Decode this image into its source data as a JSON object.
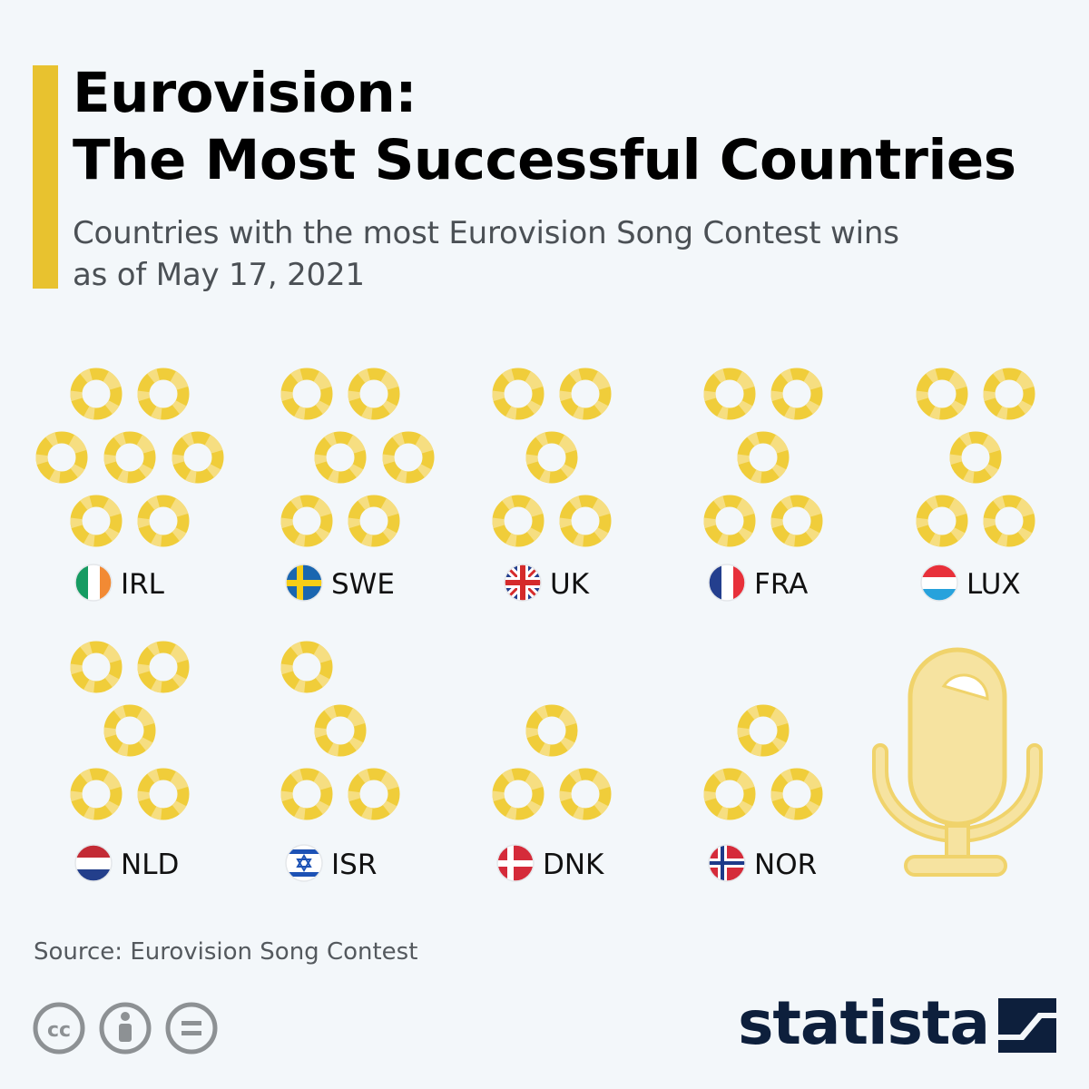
{
  "header": {
    "title_line1": "Eurovision:",
    "title_line2": "The Most Successful Countries",
    "subtitle_line1": "Countries with the most Eurovision Song Contest wins",
    "subtitle_line2": "as of May 17, 2021"
  },
  "footer": {
    "source": "Source: Eurovision Song Contest",
    "brand": "statista"
  },
  "colors": {
    "accent": "#e8c22f",
    "ring": "#f0cd3a",
    "ring_light": "#f6e08a",
    "microphone": "#f6e3a0",
    "text_dark": "#0d1f3c"
  },
  "chart_data": {
    "type": "pictogram",
    "unit": "Eurovision wins",
    "categories": [
      "IRL",
      "SWE",
      "UK",
      "FRA",
      "LUX",
      "NLD",
      "ISR",
      "DNK",
      "NOR"
    ],
    "values": [
      7,
      6,
      5,
      5,
      5,
      5,
      4,
      3,
      3
    ],
    "flags": [
      "ireland-flag-icon",
      "sweden-flag-icon",
      "uk-flag-icon",
      "france-flag-icon",
      "luxembourg-flag-icon",
      "netherlands-flag-icon",
      "israel-flag-icon",
      "denmark-flag-icon",
      "norway-flag-icon"
    ],
    "icon": "trophy-ring-icon",
    "decoration": "microphone-icon"
  }
}
